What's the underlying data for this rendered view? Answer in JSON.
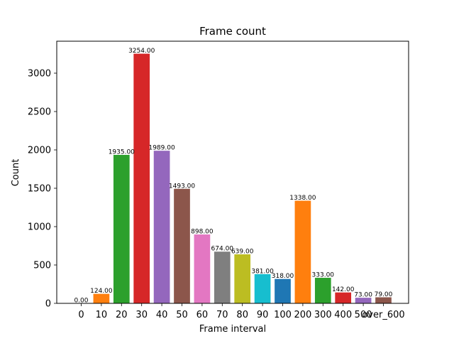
{
  "chart_data": {
    "type": "bar",
    "title": "Frame count",
    "xlabel": "Frame interval",
    "ylabel": "Count",
    "categories": [
      "0",
      "10",
      "20",
      "30",
      "40",
      "50",
      "60",
      "70",
      "80",
      "90",
      "100",
      "200",
      "300",
      "400",
      "500",
      "over_600"
    ],
    "values": [
      0,
      124,
      1935,
      3254,
      1989,
      1493,
      898,
      674,
      639,
      381,
      318,
      1338,
      333,
      142,
      73,
      79
    ],
    "value_labels": [
      "0.00",
      "124.00",
      "1935.00",
      "3254.00",
      "1989.00",
      "1493.00",
      "898.00",
      "674.00",
      "639.00",
      "381.00",
      "318.00",
      "1338.00",
      "333.00",
      "142.00",
      "73.00",
      "79.00"
    ],
    "colors": [
      "#1f77b4",
      "#ff7f0e",
      "#2ca02c",
      "#d62728",
      "#9467bd",
      "#8c564b",
      "#e377c2",
      "#7f7f7f",
      "#bcbd22",
      "#17becf",
      "#1f77b4",
      "#ff7f0e",
      "#2ca02c",
      "#d62728",
      "#9467bd",
      "#8c564b"
    ],
    "ylim": [
      0,
      3416.7
    ],
    "yticks": [
      0,
      500,
      1000,
      1500,
      2000,
      2500,
      3000
    ],
    "grid": false,
    "legend": false
  }
}
